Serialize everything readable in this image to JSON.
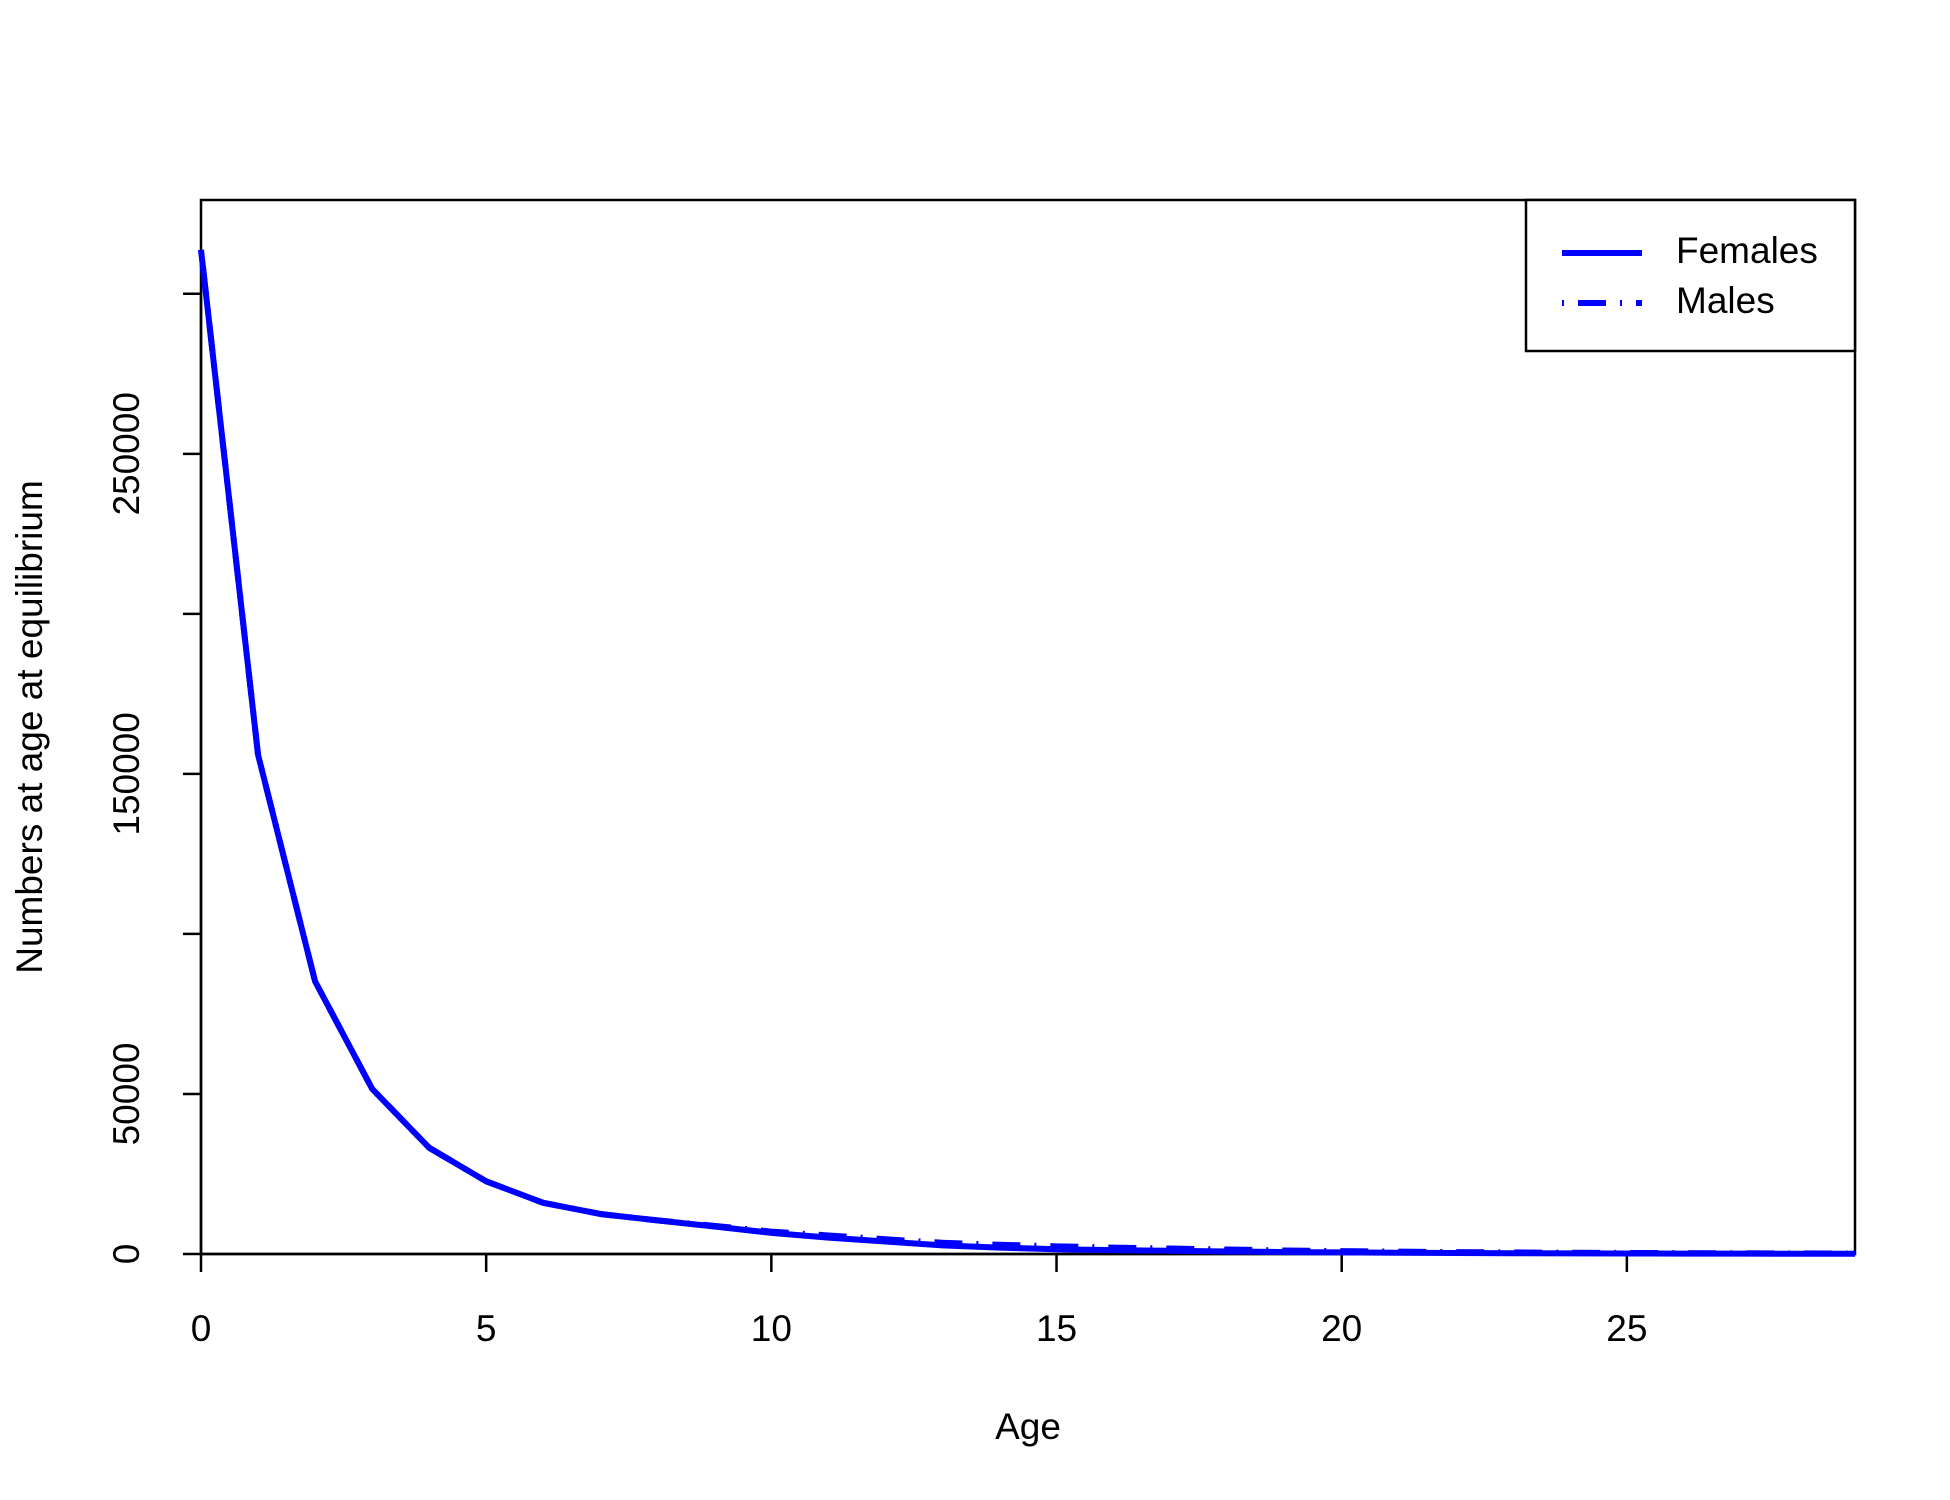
{
  "chart_data": {
    "type": "line",
    "xlabel": "Age",
    "ylabel": "Numbers at age at equilibrium",
    "x": [
      0,
      1,
      2,
      3,
      4,
      5,
      6,
      7,
      8,
      9,
      10,
      11,
      12,
      13,
      14,
      15,
      16,
      17,
      18,
      19,
      20,
      21,
      22,
      23,
      24,
      25,
      26,
      27,
      28,
      29
    ],
    "series": [
      {
        "name": "Females",
        "color": "#0000ff",
        "linestyle": "solid",
        "values": [
          313700,
          156000,
          85200,
          51600,
          33200,
          22700,
          16000,
          12500,
          10500,
          8600,
          6600,
          5100,
          3900,
          2700,
          2000,
          1500,
          1200,
          1000,
          800,
          600,
          500,
          400,
          300,
          250,
          200,
          150,
          120,
          100,
          80,
          60
        ]
      },
      {
        "name": "Males",
        "color": "#0000ff",
        "linestyle": "dotdash",
        "values": [
          313700,
          156000,
          85200,
          51600,
          33200,
          22700,
          16000,
          12500,
          10500,
          8800,
          7000,
          5800,
          4600,
          3500,
          2900,
          2400,
          2000,
          1700,
          1400,
          1100,
          900,
          750,
          600,
          500,
          400,
          330,
          270,
          220,
          180,
          150
        ]
      }
    ],
    "xlim": [
      0,
      29
    ],
    "xticks": [
      0,
      5,
      10,
      15,
      20,
      25
    ],
    "ylim": [
      0,
      329300
    ],
    "yticks": [
      0,
      50000,
      {
        "value": 100000,
        "label": null
      },
      150000,
      {
        "value": 200000,
        "label": null
      },
      250000,
      {
        "value": 300000,
        "label": null
      }
    ],
    "legend": "top-right"
  }
}
